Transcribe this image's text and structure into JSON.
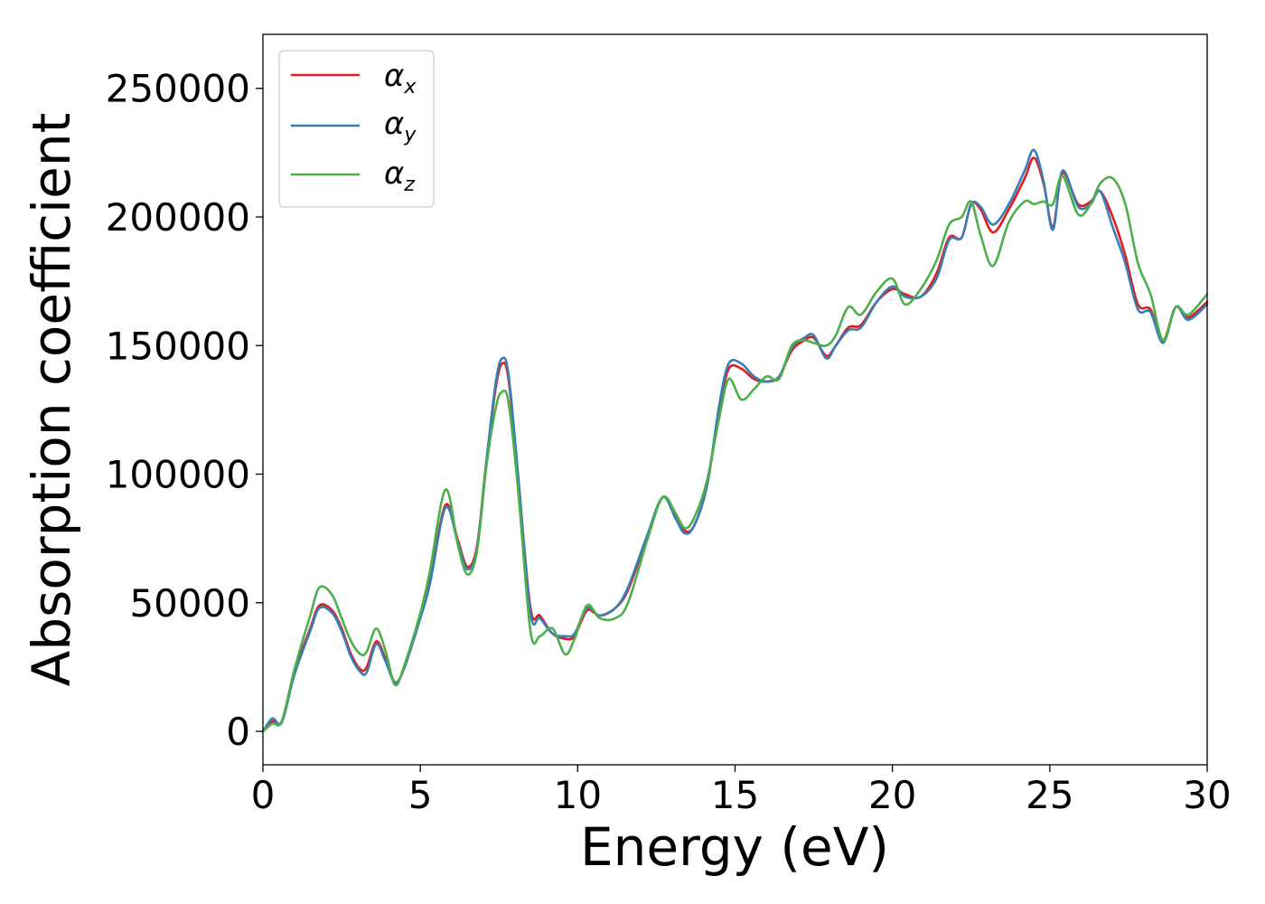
{
  "chart_data": {
    "type": "line",
    "title": "",
    "xlabel": "Energy (eV)",
    "ylabel": "Absorption coefficient",
    "xlim": [
      0,
      30
    ],
    "ylim": [
      -13000,
      271000
    ],
    "x_ticks": [
      0,
      5,
      10,
      15,
      20,
      25,
      30
    ],
    "x_tick_labels": [
      "0",
      "5",
      "10",
      "15",
      "20",
      "25",
      "30"
    ],
    "y_ticks": [
      0,
      50000,
      100000,
      150000,
      200000,
      250000
    ],
    "y_tick_labels": [
      "0",
      "50000",
      "100000",
      "150000",
      "200000",
      "250000"
    ],
    "grid": false,
    "legend_position": "top-left",
    "series": [
      {
        "name_main": "α",
        "name_sub": "x",
        "color": "#e41a1c",
        "points": [
          [
            0,
            0
          ],
          [
            0.3,
            4000
          ],
          [
            0.6,
            4000
          ],
          [
            1,
            23000
          ],
          [
            1.5,
            40000
          ],
          [
            1.8,
            49000
          ],
          [
            2.2,
            47000
          ],
          [
            2.5,
            40000
          ],
          [
            2.8,
            30000
          ],
          [
            3.1,
            24000
          ],
          [
            3.3,
            25000
          ],
          [
            3.6,
            35000
          ],
          [
            3.9,
            28000
          ],
          [
            4.2,
            19000
          ],
          [
            4.5,
            25000
          ],
          [
            5,
            45000
          ],
          [
            5.3,
            58000
          ],
          [
            5.8,
            88000
          ],
          [
            6.2,
            74000
          ],
          [
            6.5,
            64000
          ],
          [
            6.8,
            72000
          ],
          [
            7.1,
            105000
          ],
          [
            7.4,
            134000
          ],
          [
            7.6,
            143000
          ],
          [
            7.8,
            137000
          ],
          [
            8.1,
            100000
          ],
          [
            8.5,
            48000
          ],
          [
            8.8,
            45000
          ],
          [
            9.2,
            38000
          ],
          [
            9.6,
            36000
          ],
          [
            9.9,
            37000
          ],
          [
            10.3,
            47000
          ],
          [
            10.7,
            45000
          ],
          [
            11.2,
            48000
          ],
          [
            11.6,
            55000
          ],
          [
            12.2,
            75000
          ],
          [
            12.7,
            91000
          ],
          [
            13.1,
            84000
          ],
          [
            13.4,
            78000
          ],
          [
            13.7,
            80000
          ],
          [
            14.1,
            95000
          ],
          [
            14.5,
            125000
          ],
          [
            14.8,
            141000
          ],
          [
            15.2,
            141000
          ],
          [
            15.6,
            137000
          ],
          [
            16,
            136000
          ],
          [
            16.4,
            138000
          ],
          [
            16.8,
            148000
          ],
          [
            17.2,
            152000
          ],
          [
            17.5,
            153000
          ],
          [
            17.9,
            146000
          ],
          [
            18.2,
            150000
          ],
          [
            18.6,
            157000
          ],
          [
            19,
            158000
          ],
          [
            19.5,
            167000
          ],
          [
            20,
            172000
          ],
          [
            20.4,
            170000
          ],
          [
            20.9,
            169000
          ],
          [
            21.4,
            178000
          ],
          [
            21.8,
            192000
          ],
          [
            22.2,
            192000
          ],
          [
            22.5,
            205000
          ],
          [
            22.8,
            203000
          ],
          [
            23.2,
            194000
          ],
          [
            23.7,
            203000
          ],
          [
            24.2,
            215000
          ],
          [
            24.5,
            223000
          ],
          [
            24.8,
            213000
          ],
          [
            25.1,
            196000
          ],
          [
            25.4,
            217000
          ],
          [
            25.9,
            205000
          ],
          [
            26.3,
            206000
          ],
          [
            26.6,
            210000
          ],
          [
            27,
            200000
          ],
          [
            27.4,
            185000
          ],
          [
            27.8,
            166000
          ],
          [
            28.2,
            164000
          ],
          [
            28.6,
            152000
          ],
          [
            29,
            165000
          ],
          [
            29.4,
            161000
          ],
          [
            30,
            167000
          ]
        ]
      },
      {
        "name_main": "α",
        "name_sub": "y",
        "color": "#377eb8",
        "points": [
          [
            0,
            0
          ],
          [
            0.3,
            5000
          ],
          [
            0.6,
            3500
          ],
          [
            1,
            22000
          ],
          [
            1.5,
            39000
          ],
          [
            1.8,
            48000
          ],
          [
            2.2,
            46000
          ],
          [
            2.5,
            39000
          ],
          [
            2.8,
            29000
          ],
          [
            3.1,
            23000
          ],
          [
            3.3,
            23000
          ],
          [
            3.6,
            34000
          ],
          [
            3.9,
            27000
          ],
          [
            4.2,
            19000
          ],
          [
            4.5,
            25000
          ],
          [
            5,
            44000
          ],
          [
            5.3,
            57000
          ],
          [
            5.8,
            87000
          ],
          [
            6.2,
            73000
          ],
          [
            6.5,
            63000
          ],
          [
            6.8,
            71000
          ],
          [
            7.1,
            105000
          ],
          [
            7.4,
            136000
          ],
          [
            7.6,
            145000
          ],
          [
            7.8,
            139000
          ],
          [
            8.1,
            101000
          ],
          [
            8.5,
            46000
          ],
          [
            8.8,
            44000
          ],
          [
            9.2,
            38000
          ],
          [
            9.6,
            37000
          ],
          [
            9.9,
            38000
          ],
          [
            10.3,
            48000
          ],
          [
            10.7,
            45000
          ],
          [
            11.2,
            48000
          ],
          [
            11.6,
            56000
          ],
          [
            12.2,
            76000
          ],
          [
            12.7,
            91000
          ],
          [
            13.1,
            83000
          ],
          [
            13.4,
            77000
          ],
          [
            13.7,
            80000
          ],
          [
            14.1,
            95000
          ],
          [
            14.5,
            127000
          ],
          [
            14.8,
            143000
          ],
          [
            15.2,
            143000
          ],
          [
            15.6,
            138000
          ],
          [
            16,
            136000
          ],
          [
            16.4,
            138000
          ],
          [
            16.8,
            149000
          ],
          [
            17.2,
            153000
          ],
          [
            17.5,
            154000
          ],
          [
            17.9,
            145000
          ],
          [
            18.2,
            150000
          ],
          [
            18.6,
            156000
          ],
          [
            19,
            157000
          ],
          [
            19.5,
            167000
          ],
          [
            20,
            173000
          ],
          [
            20.4,
            169000
          ],
          [
            20.9,
            169000
          ],
          [
            21.4,
            176000
          ],
          [
            21.8,
            191000
          ],
          [
            22.2,
            192000
          ],
          [
            22.5,
            205000
          ],
          [
            22.8,
            204000
          ],
          [
            23.2,
            197000
          ],
          [
            23.7,
            205000
          ],
          [
            24.2,
            218000
          ],
          [
            24.5,
            226000
          ],
          [
            24.8,
            214000
          ],
          [
            25.1,
            195000
          ],
          [
            25.4,
            218000
          ],
          [
            25.9,
            204000
          ],
          [
            26.3,
            205000
          ],
          [
            26.6,
            210000
          ],
          [
            27,
            196000
          ],
          [
            27.4,
            182000
          ],
          [
            27.8,
            164000
          ],
          [
            28.2,
            163000
          ],
          [
            28.6,
            151000
          ],
          [
            29,
            165000
          ],
          [
            29.4,
            160000
          ],
          [
            30,
            166000
          ]
        ]
      },
      {
        "name_main": "α",
        "name_sub": "z",
        "color": "#4daf4a",
        "points": [
          [
            0,
            0
          ],
          [
            0.3,
            3000
          ],
          [
            0.6,
            4000
          ],
          [
            1,
            24000
          ],
          [
            1.5,
            45000
          ],
          [
            1.8,
            56000
          ],
          [
            2.2,
            53000
          ],
          [
            2.5,
            44000
          ],
          [
            2.8,
            35000
          ],
          [
            3.1,
            30000
          ],
          [
            3.3,
            31000
          ],
          [
            3.6,
            40000
          ],
          [
            3.9,
            31000
          ],
          [
            4.2,
            18000
          ],
          [
            4.5,
            26000
          ],
          [
            5,
            46000
          ],
          [
            5.3,
            62000
          ],
          [
            5.8,
            94000
          ],
          [
            6.2,
            72000
          ],
          [
            6.5,
            61000
          ],
          [
            6.8,
            70000
          ],
          [
            7.1,
            103000
          ],
          [
            7.4,
            126000
          ],
          [
            7.6,
            132000
          ],
          [
            7.8,
            128000
          ],
          [
            8.1,
            95000
          ],
          [
            8.5,
            39000
          ],
          [
            8.8,
            37000
          ],
          [
            9.2,
            40000
          ],
          [
            9.6,
            30000
          ],
          [
            9.9,
            36000
          ],
          [
            10.3,
            49000
          ],
          [
            10.7,
            44000
          ],
          [
            11.2,
            44000
          ],
          [
            11.6,
            50000
          ],
          [
            12.2,
            74000
          ],
          [
            12.7,
            91000
          ],
          [
            13.1,
            85000
          ],
          [
            13.4,
            79000
          ],
          [
            13.7,
            83000
          ],
          [
            14.1,
            97000
          ],
          [
            14.5,
            122000
          ],
          [
            14.8,
            137000
          ],
          [
            15.2,
            129000
          ],
          [
            15.6,
            133000
          ],
          [
            16,
            138000
          ],
          [
            16.4,
            137000
          ],
          [
            16.8,
            150000
          ],
          [
            17.2,
            152000
          ],
          [
            17.5,
            151000
          ],
          [
            17.9,
            150000
          ],
          [
            18.2,
            154000
          ],
          [
            18.6,
            165000
          ],
          [
            19,
            162000
          ],
          [
            19.5,
            171000
          ],
          [
            20,
            176000
          ],
          [
            20.4,
            166000
          ],
          [
            20.9,
            172000
          ],
          [
            21.4,
            183000
          ],
          [
            21.8,
            197000
          ],
          [
            22.2,
            200000
          ],
          [
            22.5,
            206000
          ],
          [
            22.8,
            193000
          ],
          [
            23.2,
            181000
          ],
          [
            23.7,
            198000
          ],
          [
            24.2,
            206000
          ],
          [
            24.5,
            205000
          ],
          [
            24.8,
            206000
          ],
          [
            25.1,
            205000
          ],
          [
            25.4,
            216000
          ],
          [
            25.9,
            201000
          ],
          [
            26.3,
            205000
          ],
          [
            26.6,
            213000
          ],
          [
            27,
            215000
          ],
          [
            27.4,
            205000
          ],
          [
            27.8,
            182000
          ],
          [
            28.2,
            170000
          ],
          [
            28.6,
            152000
          ],
          [
            29,
            165000
          ],
          [
            29.4,
            162000
          ],
          [
            30,
            170000
          ]
        ]
      }
    ]
  }
}
